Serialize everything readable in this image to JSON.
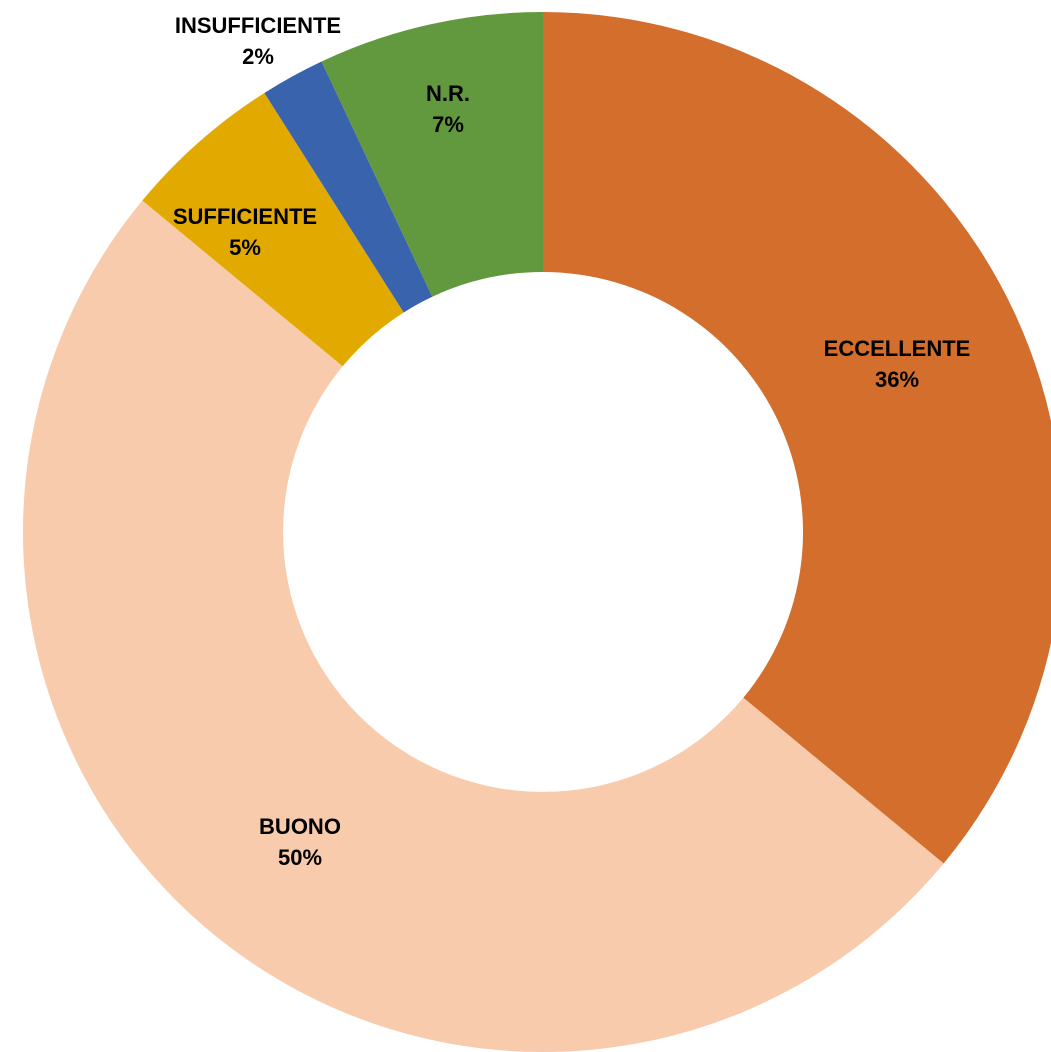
{
  "chart_data": {
    "type": "donut",
    "categories": [
      "ECCELLENTE",
      "BUONO",
      "SUFFICIENTE",
      "INSUFFICIENTE",
      "N.R."
    ],
    "values": [
      36,
      50,
      5,
      2,
      7
    ],
    "value_labels": [
      "36%",
      "50%",
      "5%",
      "2%",
      "7%"
    ],
    "colors": [
      "#d36e2c",
      "#f8cbad",
      "#e2aa00",
      "#3a63ad",
      "#62993e"
    ]
  }
}
